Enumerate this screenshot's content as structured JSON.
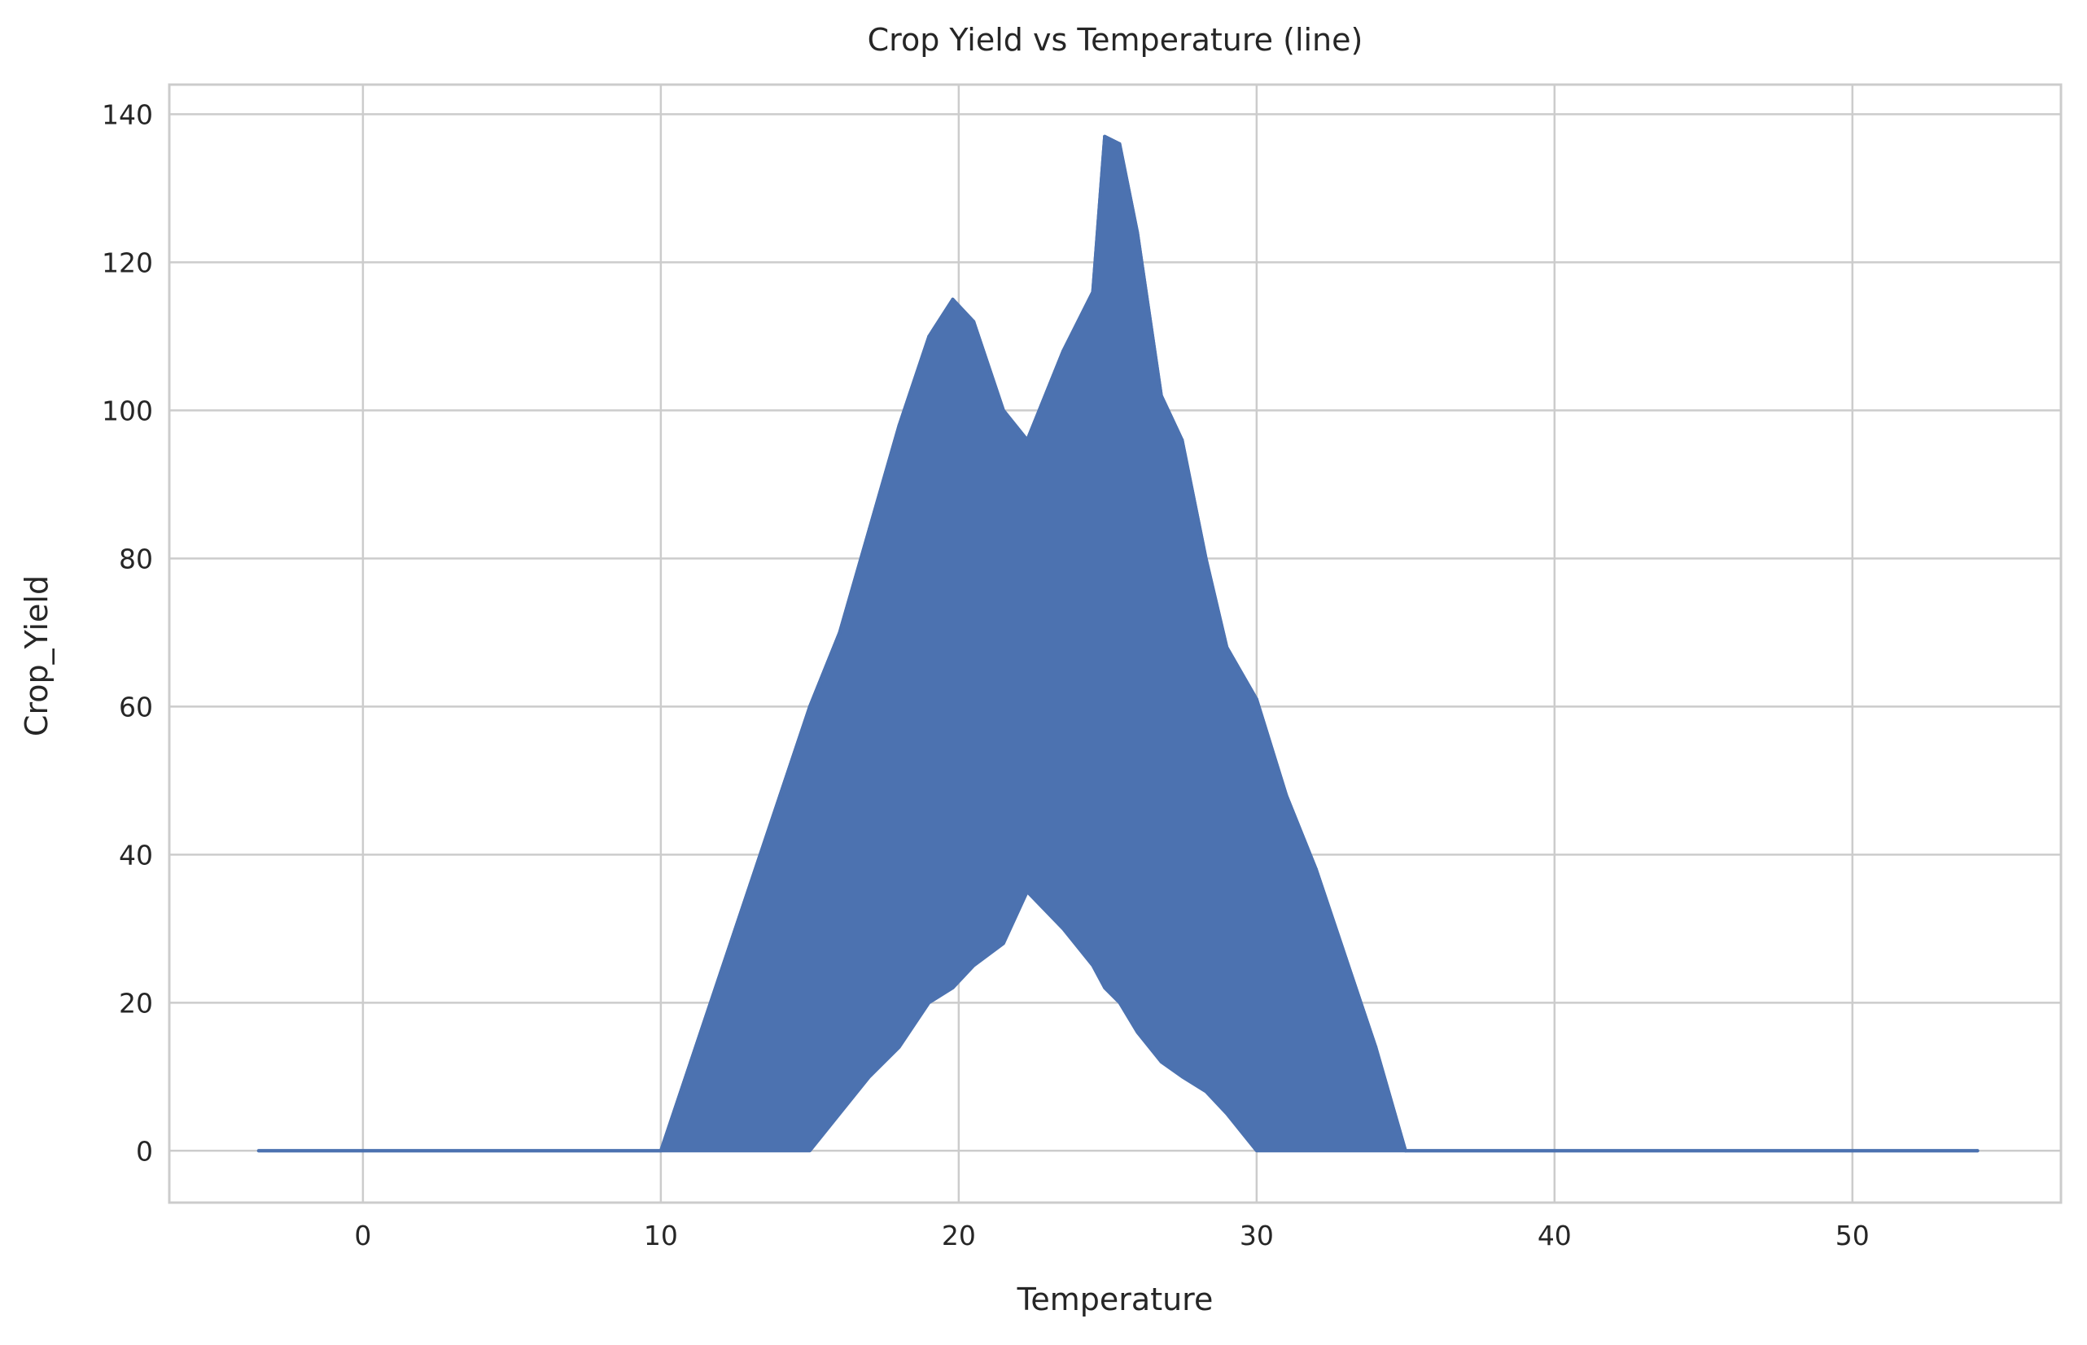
{
  "chart_data": {
    "type": "line",
    "title": "Crop Yield vs Temperature (line)",
    "xlabel": "Temperature",
    "ylabel": "Crop_Yield",
    "xlim": [
      -6.5,
      57
    ],
    "ylim": [
      -7,
      144
    ],
    "xticks": [
      0,
      10,
      20,
      30,
      40,
      50
    ],
    "yticks": [
      0,
      20,
      40,
      60,
      80,
      100,
      120,
      140
    ],
    "grid": true,
    "legend": "none",
    "series": [
      {
        "color": "#4c72b0",
        "x": [
          -3.5,
          10,
          11,
          12,
          13,
          14,
          15,
          16,
          17,
          18,
          19,
          19.8,
          20.5,
          21.5,
          22.3,
          23.5,
          24.5,
          24.9,
          25.4,
          26,
          26.8,
          27.5,
          28.3,
          29,
          30,
          31,
          32,
          33,
          34,
          35,
          54.2
        ],
        "y_upper": [
          0,
          0,
          12,
          24,
          36,
          48,
          60,
          70,
          84,
          98,
          110,
          115,
          112,
          100,
          96,
          108,
          116,
          137,
          136,
          124,
          102,
          96,
          80,
          68,
          61,
          48,
          38,
          26,
          14,
          0,
          0
        ],
        "y_lower": [
          0,
          0,
          0,
          0,
          0,
          0,
          0,
          5,
          10,
          14,
          20,
          22,
          25,
          28,
          35,
          30,
          25,
          22,
          20,
          16,
          12,
          10,
          8,
          5,
          0,
          0,
          0,
          0,
          0,
          0,
          0
        ]
      }
    ]
  }
}
